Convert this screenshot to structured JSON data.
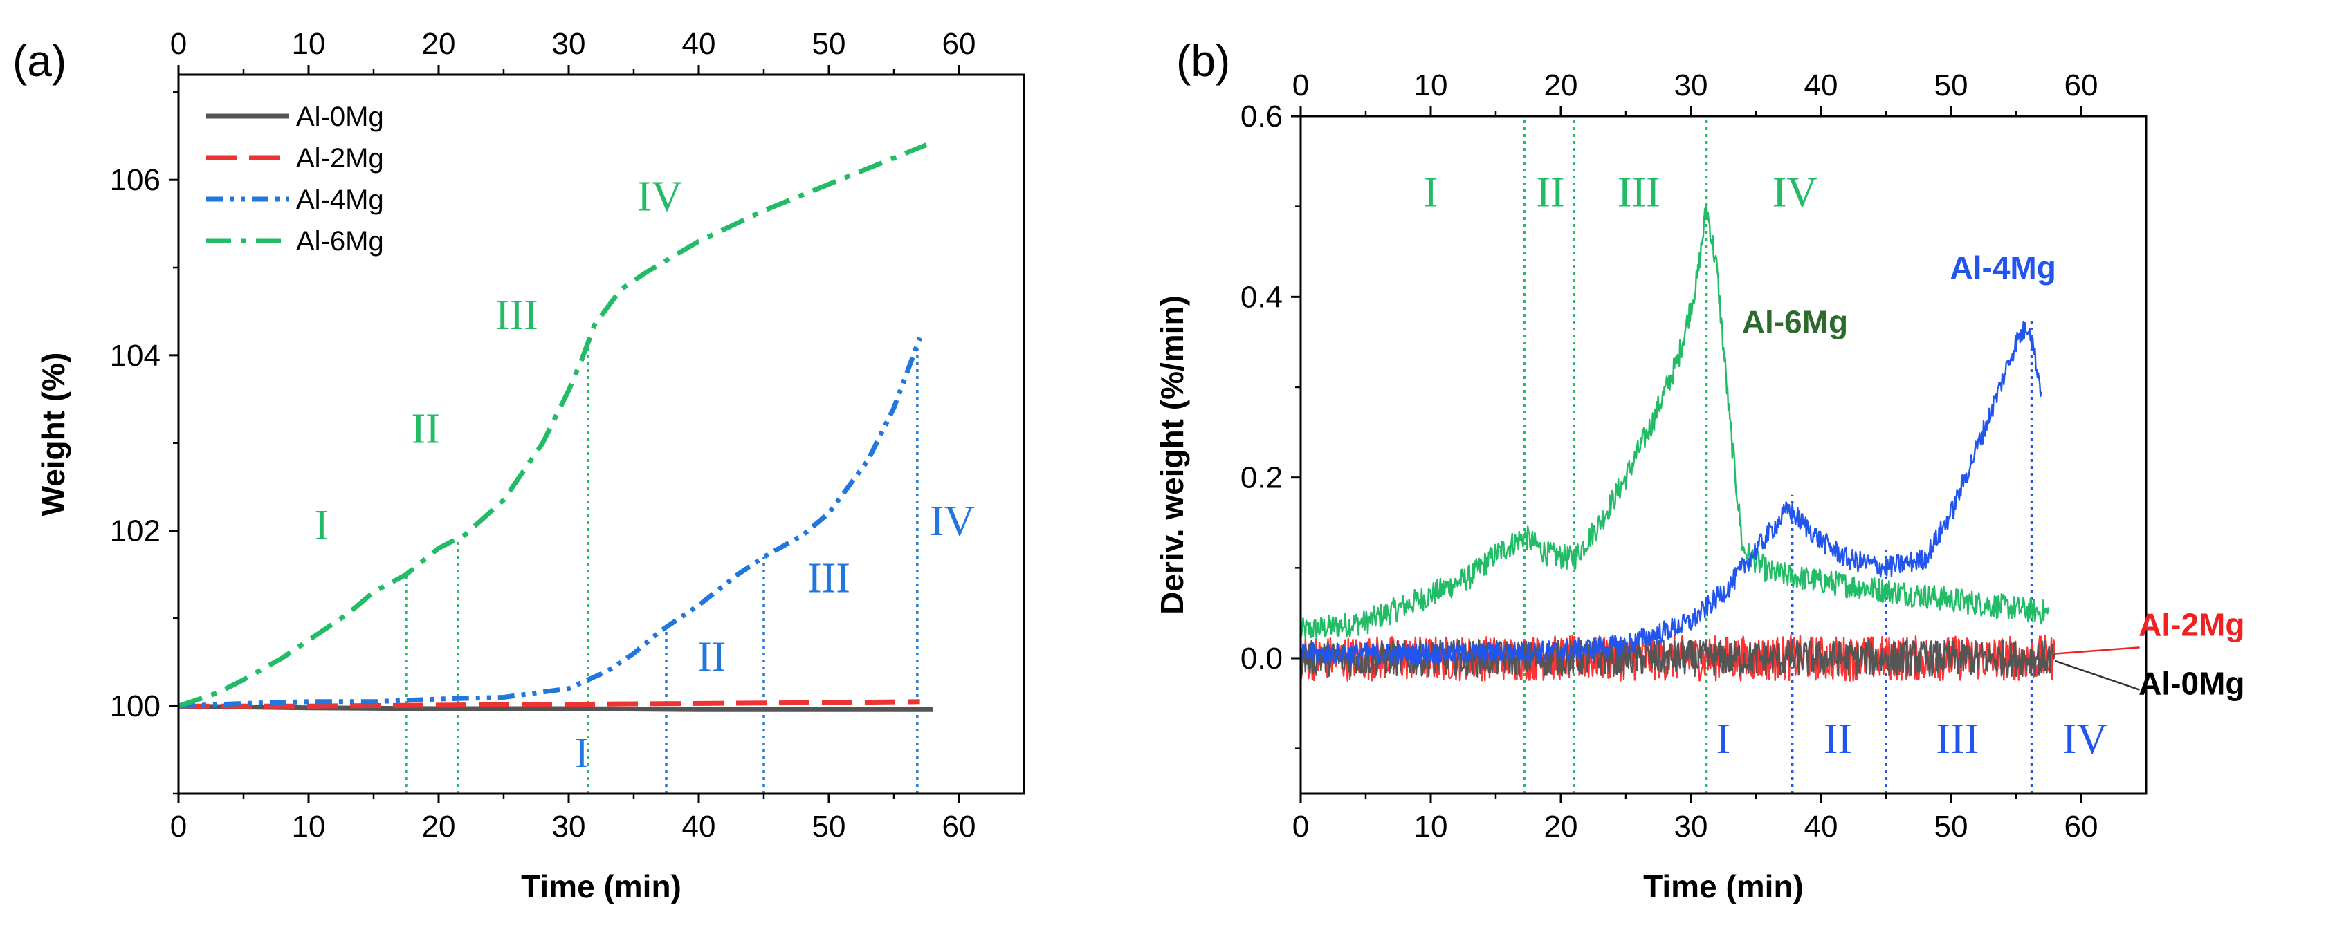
{
  "chart_data": [
    {
      "panel": "(a)",
      "type": "line",
      "xlabel": "Time (min)",
      "ylabel": "Weight (%)",
      "xlim": [
        0,
        65
      ],
      "ylim": [
        99,
        107.2
      ],
      "xticks": [
        0,
        10,
        20,
        30,
        40,
        50,
        60
      ],
      "yticks": [
        100,
        102,
        104,
        106
      ],
      "legend_position": "top-left",
      "series": [
        {
          "name": "Al-0Mg",
          "color": "#555555",
          "dash": "solid",
          "x": [
            0,
            10,
            20,
            30,
            40,
            50,
            58
          ],
          "y": [
            100,
            99.98,
            99.97,
            99.97,
            99.96,
            99.96,
            99.96
          ]
        },
        {
          "name": "Al-2Mg",
          "color": "#ee3333",
          "dash": "dash",
          "x": [
            0,
            10,
            20,
            30,
            40,
            50,
            57
          ],
          "y": [
            100,
            100.0,
            100.01,
            100.02,
            100.03,
            100.04,
            100.05
          ]
        },
        {
          "name": "Al-4Mg",
          "color": "#2277dd",
          "dash": "dashdotdot",
          "x": [
            0,
            5,
            10,
            15,
            20,
            25,
            30,
            33,
            35,
            37,
            40,
            43,
            45,
            48,
            50,
            53,
            55,
            57
          ],
          "y": [
            100,
            100.03,
            100.05,
            100.05,
            100.08,
            100.1,
            100.2,
            100.4,
            100.6,
            100.85,
            101.15,
            101.5,
            101.7,
            101.95,
            102.2,
            102.8,
            103.4,
            104.2
          ]
        },
        {
          "name": "Al-6Mg",
          "color": "#22bb66",
          "dash": "dashdot",
          "x": [
            0,
            3,
            5,
            8,
            10,
            13,
            15,
            17.5,
            20,
            22,
            25,
            28,
            30,
            31,
            32,
            34,
            36,
            40,
            45,
            50,
            55,
            57.5
          ],
          "y": [
            100,
            100.15,
            100.3,
            100.55,
            100.75,
            101.05,
            101.3,
            101.5,
            101.8,
            101.95,
            102.35,
            103.0,
            103.6,
            103.95,
            104.35,
            104.75,
            104.95,
            105.3,
            105.65,
            105.95,
            106.25,
            106.4
          ]
        }
      ],
      "stage_markers": [
        {
          "series": "Al-6Mg",
          "x": [
            17.5,
            21.5,
            31.5
          ]
        },
        {
          "series": "Al-4Mg",
          "x": [
            37.5,
            45,
            56.8
          ]
        }
      ],
      "stage_labels": [
        {
          "text": "I",
          "series": "Al-6Mg",
          "x": 11,
          "y": 101.9
        },
        {
          "text": "II",
          "series": "Al-6Mg",
          "x": 19,
          "y": 103.0
        },
        {
          "text": "III",
          "series": "Al-6Mg",
          "x": 26,
          "y": 104.3
        },
        {
          "text": "IV",
          "series": "Al-6Mg",
          "x": 37,
          "y": 105.65
        },
        {
          "text": "I",
          "series": "Al-4Mg",
          "x": 31,
          "y": 99.3
        },
        {
          "text": "II",
          "series": "Al-4Mg",
          "x": 41,
          "y": 100.4
        },
        {
          "text": "III",
          "series": "Al-4Mg",
          "x": 50,
          "y": 101.3
        },
        {
          "text": "IV",
          "series": "Al-4Mg",
          "x": 59.5,
          "y": 101.95
        }
      ]
    },
    {
      "panel": "(b)",
      "type": "line",
      "xlabel": "Time (min)",
      "ylabel": "Deriv. weight (%/min)",
      "xlim": [
        0,
        65
      ],
      "ylim": [
        -0.15,
        0.6
      ],
      "xticks": [
        0,
        10,
        20,
        30,
        40,
        50,
        60
      ],
      "yticks": [
        0.0,
        0.2,
        0.4,
        0.6
      ],
      "ytick_labels": [
        "0.0",
        "0.2",
        "0.4",
        "0.6"
      ],
      "series": [
        {
          "name": "Al-0Mg",
          "color": "#555555",
          "x": [
            0,
            10,
            20,
            30,
            40,
            50,
            58
          ],
          "y": [
            0,
            0,
            0,
            0,
            0,
            0,
            0
          ],
          "noise": 0.02
        },
        {
          "name": "Al-2Mg",
          "color": "#ff3333",
          "x": [
            0,
            10,
            20,
            30,
            40,
            50,
            58
          ],
          "y": [
            0,
            0,
            0,
            0,
            0,
            0,
            0
          ],
          "noise": 0.025
        },
        {
          "name": "Al-4Mg",
          "color": "#2255ee",
          "x": [
            0,
            10,
            20,
            25,
            30,
            33,
            35,
            37.5,
            40,
            42,
            45,
            48,
            50,
            53,
            55,
            56,
            57
          ],
          "y": [
            0.005,
            0.005,
            0.008,
            0.015,
            0.04,
            0.08,
            0.12,
            0.165,
            0.13,
            0.11,
            0.1,
            0.11,
            0.16,
            0.27,
            0.35,
            0.37,
            0.29
          ],
          "noise": 0.012
        },
        {
          "name": "Al-6Mg",
          "color": "#22bb66",
          "x": [
            0,
            5,
            10,
            13,
            15,
            17.2,
            19,
            21,
            23,
            25,
            27,
            29,
            30.5,
            31.2,
            32,
            33,
            34,
            36,
            40,
            45,
            50,
            55,
            57.5
          ],
          "y": [
            0.03,
            0.04,
            0.07,
            0.09,
            0.115,
            0.135,
            0.115,
            0.11,
            0.15,
            0.2,
            0.26,
            0.33,
            0.42,
            0.5,
            0.43,
            0.26,
            0.12,
            0.095,
            0.085,
            0.075,
            0.065,
            0.055,
            0.05
          ],
          "noise": 0.014
        }
      ],
      "stage_markers": [
        {
          "series": "Al-6Mg",
          "x": [
            17.2,
            21,
            31.2
          ]
        },
        {
          "series": "Al-4Mg",
          "x": [
            37.8,
            45,
            56.2
          ]
        }
      ],
      "stage_labels": [
        {
          "text": "I",
          "series": "Al-6Mg",
          "x": 10,
          "y": 0.5
        },
        {
          "text": "II",
          "series": "Al-6Mg",
          "x": 19.2,
          "y": 0.5
        },
        {
          "text": "III",
          "series": "Al-6Mg",
          "x": 26,
          "y": 0.5
        },
        {
          "text": "IV",
          "series": "Al-6Mg",
          "x": 38,
          "y": 0.5
        },
        {
          "text": "I",
          "series": "Al-4Mg",
          "x": 32.5,
          "y": -0.105
        },
        {
          "text": "II",
          "series": "Al-4Mg",
          "x": 41.3,
          "y": -0.105
        },
        {
          "text": "III",
          "series": "Al-4Mg",
          "x": 50.5,
          "y": -0.105
        },
        {
          "text": "IV",
          "series": "Al-4Mg",
          "x": 60.3,
          "y": -0.105
        }
      ],
      "series_labels": [
        {
          "text": "Al-6Mg",
          "color": "#2d6a2d",
          "x": 38,
          "y": 0.36
        },
        {
          "text": "Al-4Mg",
          "color": "#2255ee",
          "x": 54,
          "y": 0.42
        },
        {
          "text": "Al-2Mg",
          "color": "#ee2222",
          "x": 68.5,
          "y": 0.025
        },
        {
          "text": "Al-0Mg",
          "color": "#000000",
          "x": 68.5,
          "y": -0.04
        }
      ]
    }
  ]
}
